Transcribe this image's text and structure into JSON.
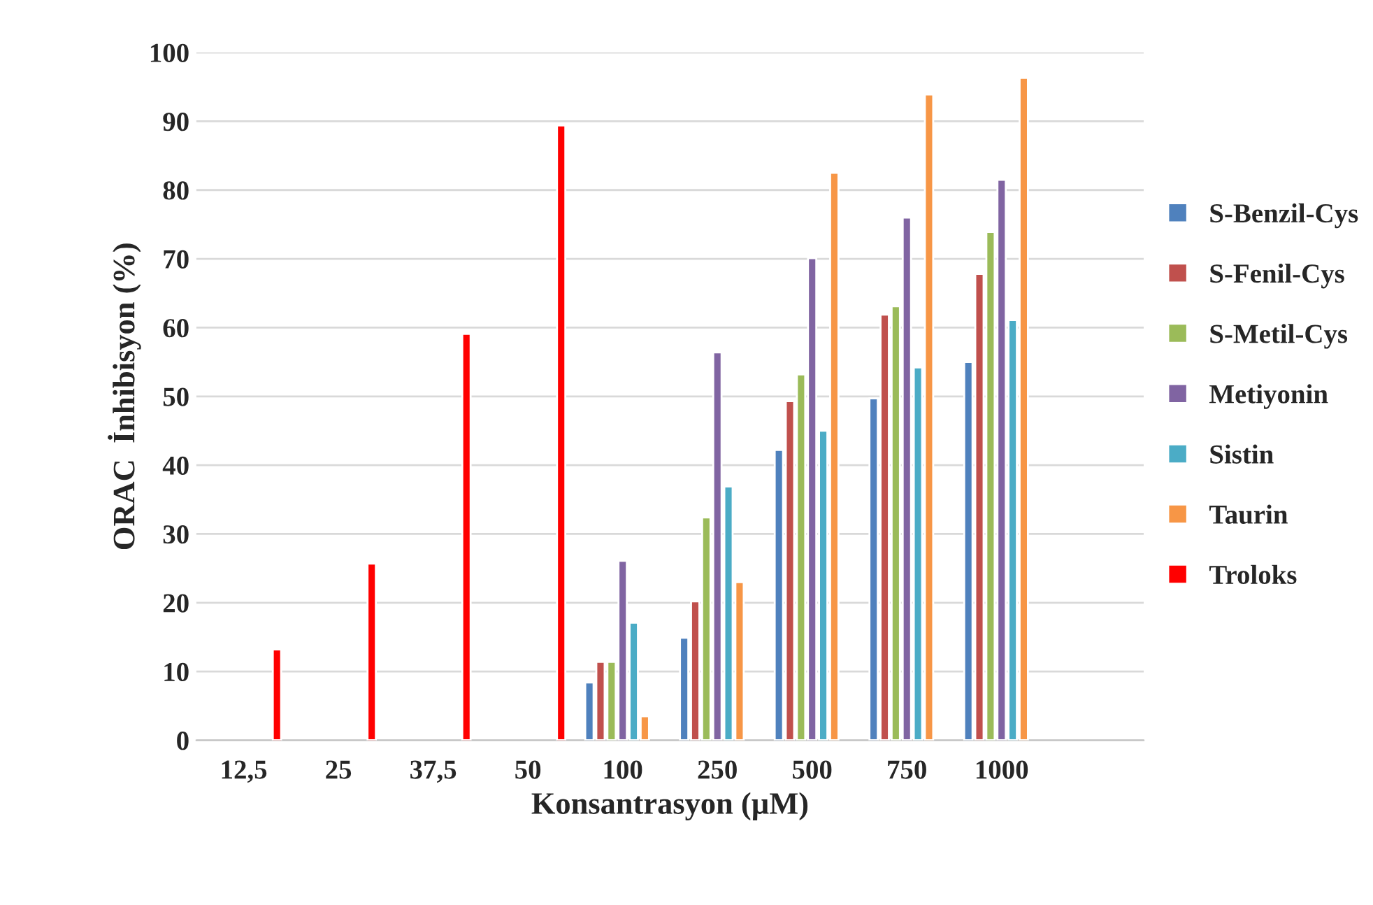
{
  "chart_data": {
    "type": "bar",
    "xlabel": "Konsantrasyon (µM)",
    "ylabel": "ORAC  İnhibisyon (%)",
    "categories": [
      "12,5",
      "25",
      "37,5",
      "50",
      "100",
      "250",
      "500",
      "750",
      "1000",
      null
    ],
    "series": [
      {
        "name": "S-Benzil-Cys",
        "color": "#4f81bd",
        "values": [
          null,
          null,
          null,
          null,
          8.4,
          14.9,
          42.2,
          49.7,
          55.0,
          null
        ]
      },
      {
        "name": "S-Fenil-Cys",
        "color": "#c0504d",
        "values": [
          null,
          null,
          null,
          null,
          11.4,
          20.2,
          49.3,
          61.9,
          67.8,
          null
        ]
      },
      {
        "name": "S-Metil-Cys",
        "color": "#9bbb59",
        "values": [
          null,
          null,
          null,
          null,
          11.4,
          32.4,
          53.2,
          63.1,
          73.9,
          null
        ]
      },
      {
        "name": "Metiyonin",
        "color": "#8064a2",
        "values": [
          null,
          null,
          null,
          null,
          26.1,
          56.4,
          70.1,
          76.0,
          81.5,
          null
        ]
      },
      {
        "name": "Sistin",
        "color": "#4bacc6",
        "values": [
          null,
          null,
          null,
          null,
          17.1,
          36.9,
          45.0,
          54.2,
          61.1,
          null
        ]
      },
      {
        "name": "Taurin",
        "color": "#f79646",
        "values": [
          null,
          null,
          null,
          null,
          3.5,
          23.0,
          82.5,
          93.9,
          96.3,
          null
        ]
      },
      {
        "name": "Troloks",
        "color": "#ff0000",
        "values": [
          13.2,
          25.7,
          59.1,
          89.4,
          null,
          null,
          null,
          null,
          null,
          null
        ]
      }
    ],
    "ylim": [
      0,
      100
    ],
    "yticks": [
      0,
      10,
      20,
      30,
      40,
      50,
      60,
      70,
      80,
      90,
      100
    ],
    "grid": "y",
    "legend": "right"
  }
}
